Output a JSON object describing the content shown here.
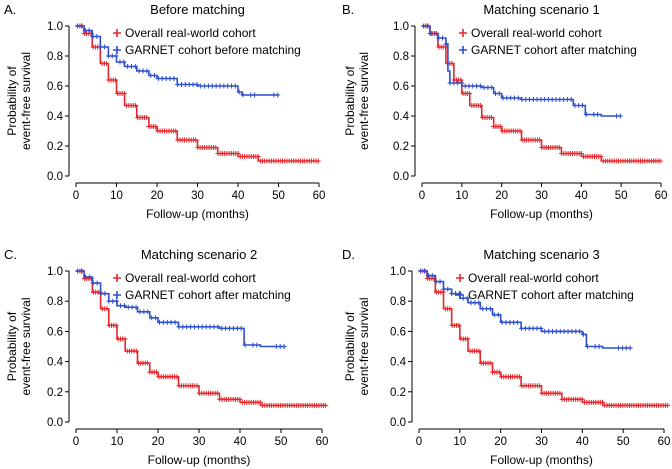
{
  "colors": {
    "real_world": "#e8262b",
    "garnet": "#2c4fd1",
    "axis": "#000000"
  },
  "chart_data": [
    {
      "type": "line",
      "panel_label": "A.",
      "title": "Before matching",
      "xlabel": "Follow-up (months)",
      "ylabel_line1": "Probability of",
      "ylabel_line2": "event-free survival",
      "xlim": [
        0,
        60
      ],
      "ylim": [
        0,
        1
      ],
      "x_ticks": [
        "0",
        "10",
        "20",
        "30",
        "40",
        "50",
        "60"
      ],
      "y_ticks": [
        "0.0",
        "0.2",
        "0.4",
        "0.6",
        "0.8",
        "1.0"
      ],
      "legend_position": "top-right",
      "series": [
        {
          "name": "Overall real-world cohort",
          "color_key": "real_world",
          "x_end": 60,
          "points": [
            [
              0,
              1.0
            ],
            [
              2,
              0.95
            ],
            [
              4,
              0.86
            ],
            [
              6,
              0.75
            ],
            [
              8,
              0.64
            ],
            [
              10,
              0.55
            ],
            [
              12,
              0.47
            ],
            [
              15,
              0.39
            ],
            [
              18,
              0.33
            ],
            [
              20,
              0.3
            ],
            [
              25,
              0.24
            ],
            [
              30,
              0.19
            ],
            [
              35,
              0.15
            ],
            [
              40,
              0.13
            ],
            [
              45,
              0.1
            ],
            [
              50,
              0.1
            ],
            [
              55,
              0.1
            ],
            [
              60,
              0.1
            ]
          ]
        },
        {
          "name": "GARNET cohort before matching",
          "color_key": "garnet",
          "x_end": 50,
          "points": [
            [
              0,
              1.0
            ],
            [
              2,
              0.97
            ],
            [
              4,
              0.93
            ],
            [
              6,
              0.86
            ],
            [
              8,
              0.8
            ],
            [
              10,
              0.76
            ],
            [
              12,
              0.73
            ],
            [
              15,
              0.7
            ],
            [
              18,
              0.67
            ],
            [
              20,
              0.65
            ],
            [
              25,
              0.61
            ],
            [
              30,
              0.6
            ],
            [
              35,
              0.6
            ],
            [
              40,
              0.56
            ],
            [
              41,
              0.54
            ],
            [
              50,
              0.54
            ]
          ]
        }
      ]
    },
    {
      "type": "line",
      "panel_label": "B.",
      "title": "Matching scenario 1",
      "xlabel": "Follow-up (months)",
      "ylabel_line1": "Probability of",
      "ylabel_line2": "event-free survival",
      "xlim": [
        0,
        60
      ],
      "ylim": [
        0,
        1
      ],
      "x_ticks": [
        "0",
        "10",
        "20",
        "30",
        "40",
        "50",
        "60"
      ],
      "y_ticks": [
        "0.0",
        "0.2",
        "0.4",
        "0.6",
        "0.8",
        "1.0"
      ],
      "legend_position": "top-right",
      "series": [
        {
          "name": "Overall real-world cohort",
          "color_key": "real_world",
          "x_end": 60,
          "points": [
            [
              0,
              1.0
            ],
            [
              2,
              0.95
            ],
            [
              4,
              0.86
            ],
            [
              6,
              0.75
            ],
            [
              8,
              0.64
            ],
            [
              10,
              0.55
            ],
            [
              12,
              0.47
            ],
            [
              15,
              0.39
            ],
            [
              18,
              0.33
            ],
            [
              20,
              0.3
            ],
            [
              25,
              0.24
            ],
            [
              30,
              0.19
            ],
            [
              35,
              0.15
            ],
            [
              40,
              0.13
            ],
            [
              45,
              0.1
            ],
            [
              50,
              0.1
            ],
            [
              55,
              0.1
            ],
            [
              60,
              0.1
            ]
          ]
        },
        {
          "name": "GARNET cohort after matching",
          "color_key": "garnet",
          "x_end": 50,
          "points": [
            [
              0,
              1.0
            ],
            [
              2,
              0.95
            ],
            [
              4,
              0.92
            ],
            [
              6,
              0.88
            ],
            [
              6.5,
              0.7
            ],
            [
              7,
              0.62
            ],
            [
              10,
              0.6
            ],
            [
              15,
              0.59
            ],
            [
              18,
              0.55
            ],
            [
              20,
              0.52
            ],
            [
              25,
              0.51
            ],
            [
              30,
              0.51
            ],
            [
              35,
              0.51
            ],
            [
              38,
              0.47
            ],
            [
              40,
              0.47
            ],
            [
              41,
              0.41
            ],
            [
              45,
              0.4
            ],
            [
              50,
              0.4
            ]
          ]
        }
      ]
    },
    {
      "type": "line",
      "panel_label": "C.",
      "title": "Matching scenario 2",
      "xlabel": "Follow-up (months)",
      "ylabel_line1": "Probability of",
      "ylabel_line2": "event-free survival",
      "xlim": [
        0,
        60
      ],
      "ylim": [
        0,
        1
      ],
      "x_ticks": [
        "0",
        "10",
        "20",
        "30",
        "40",
        "50",
        "60"
      ],
      "y_ticks": [
        "0.0",
        "0.2",
        "0.4",
        "0.6",
        "0.8",
        "1.0"
      ],
      "legend_position": "top-right",
      "series": [
        {
          "name": "Overall real-world cohort",
          "color_key": "real_world",
          "x_end": 61,
          "points": [
            [
              0,
              1.0
            ],
            [
              2,
              0.95
            ],
            [
              4,
              0.86
            ],
            [
              6,
              0.75
            ],
            [
              8,
              0.64
            ],
            [
              10,
              0.55
            ],
            [
              12,
              0.47
            ],
            [
              15,
              0.39
            ],
            [
              18,
              0.33
            ],
            [
              20,
              0.3
            ],
            [
              25,
              0.24
            ],
            [
              30,
              0.19
            ],
            [
              35,
              0.15
            ],
            [
              40,
              0.13
            ],
            [
              45,
              0.11
            ],
            [
              50,
              0.11
            ],
            [
              55,
              0.11
            ],
            [
              61,
              0.11
            ]
          ]
        },
        {
          "name": "GARNET cohort after matching",
          "color_key": "garnet",
          "x_end": 51,
          "points": [
            [
              0,
              1.0
            ],
            [
              2,
              0.96
            ],
            [
              4,
              0.92
            ],
            [
              6,
              0.85
            ],
            [
              8,
              0.8
            ],
            [
              10,
              0.77
            ],
            [
              12,
              0.76
            ],
            [
              15,
              0.73
            ],
            [
              18,
              0.69
            ],
            [
              20,
              0.66
            ],
            [
              25,
              0.63
            ],
            [
              30,
              0.63
            ],
            [
              35,
              0.62
            ],
            [
              40,
              0.62
            ],
            [
              41,
              0.51
            ],
            [
              45,
              0.5
            ],
            [
              51,
              0.5
            ]
          ]
        }
      ]
    },
    {
      "type": "line",
      "panel_label": "D.",
      "title": "Matching scenario 3",
      "xlabel": "Follow-up (months)",
      "ylabel_line1": "Probability of",
      "ylabel_line2": "event-free survival",
      "xlim": [
        0,
        60
      ],
      "ylim": [
        0,
        1
      ],
      "x_ticks": [
        "0",
        "10",
        "20",
        "30",
        "40",
        "50",
        "60"
      ],
      "y_ticks": [
        "0.0",
        "0.2",
        "0.4",
        "0.6",
        "0.8",
        "1.0"
      ],
      "legend_position": "top-right",
      "series": [
        {
          "name": "Overall real-world cohort",
          "color_key": "real_world",
          "x_end": 61,
          "points": [
            [
              0,
              1.0
            ],
            [
              2,
              0.95
            ],
            [
              4,
              0.86
            ],
            [
              6,
              0.75
            ],
            [
              8,
              0.64
            ],
            [
              10,
              0.55
            ],
            [
              12,
              0.47
            ],
            [
              15,
              0.39
            ],
            [
              18,
              0.33
            ],
            [
              20,
              0.3
            ],
            [
              25,
              0.24
            ],
            [
              30,
              0.19
            ],
            [
              35,
              0.15
            ],
            [
              40,
              0.13
            ],
            [
              45,
              0.11
            ],
            [
              50,
              0.11
            ],
            [
              55,
              0.11
            ],
            [
              61,
              0.11
            ]
          ]
        },
        {
          "name": "GARNET cohort after matching",
          "color_key": "garnet",
          "x_end": 52,
          "points": [
            [
              0,
              1.0
            ],
            [
              2,
              0.97
            ],
            [
              4,
              0.93
            ],
            [
              6,
              0.88
            ],
            [
              8,
              0.85
            ],
            [
              10,
              0.82
            ],
            [
              12,
              0.79
            ],
            [
              15,
              0.75
            ],
            [
              18,
              0.71
            ],
            [
              20,
              0.66
            ],
            [
              25,
              0.62
            ],
            [
              30,
              0.6
            ],
            [
              35,
              0.6
            ],
            [
              40,
              0.58
            ],
            [
              41,
              0.5
            ],
            [
              45,
              0.49
            ],
            [
              52,
              0.49
            ]
          ]
        }
      ]
    }
  ]
}
